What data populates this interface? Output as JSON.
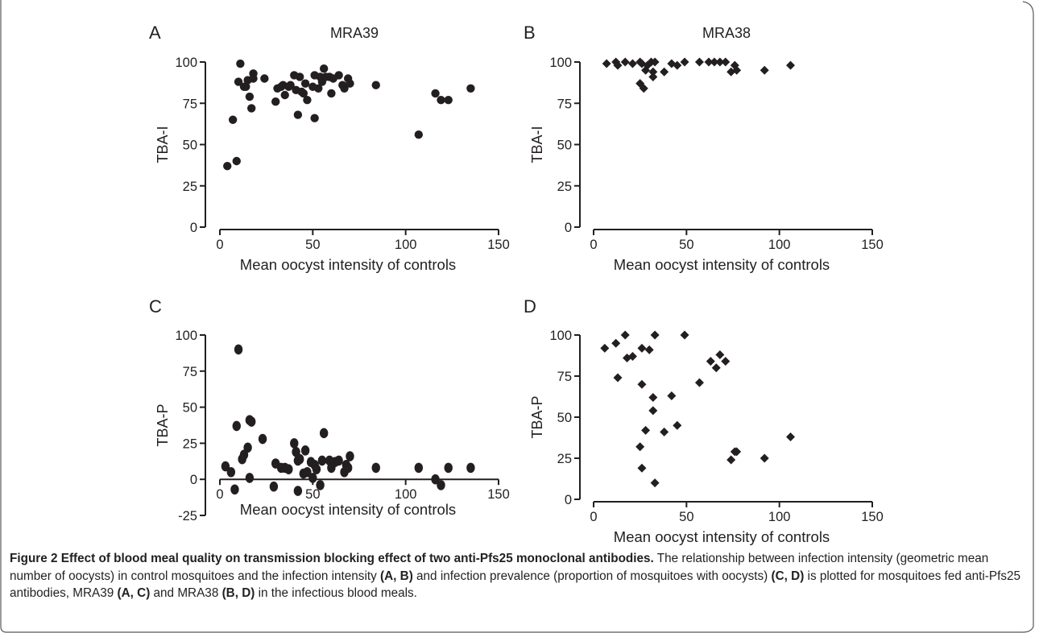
{
  "chart_data": [
    {
      "panel": "A",
      "type": "scatter",
      "title": "MRA39",
      "xlabel": "Mean oocyst intensity of controls",
      "ylabel": "TBA-I",
      "xlim": [
        0,
        150
      ],
      "ylim": [
        0,
        100
      ],
      "xticks": [
        0,
        50,
        100,
        150
      ],
      "yticks": [
        0,
        25,
        50,
        75,
        100
      ],
      "marker": "circle",
      "points": [
        [
          4,
          37
        ],
        [
          7,
          65
        ],
        [
          9,
          40
        ],
        [
          10,
          88
        ],
        [
          11,
          99
        ],
        [
          13,
          85
        ],
        [
          14,
          85
        ],
        [
          15,
          89
        ],
        [
          16,
          79
        ],
        [
          17,
          72
        ],
        [
          18,
          90
        ],
        [
          18,
          93
        ],
        [
          24,
          90
        ],
        [
          30,
          76
        ],
        [
          31,
          84
        ],
        [
          33,
          85
        ],
        [
          34,
          86
        ],
        [
          35,
          80
        ],
        [
          37,
          85
        ],
        [
          38,
          86
        ],
        [
          40,
          92
        ],
        [
          41,
          83
        ],
        [
          42,
          68
        ],
        [
          43,
          91
        ],
        [
          44,
          82
        ],
        [
          45,
          81
        ],
        [
          46,
          87
        ],
        [
          47,
          77
        ],
        [
          50,
          85
        ],
        [
          51,
          92
        ],
        [
          51,
          66
        ],
        [
          53,
          84
        ],
        [
          54,
          91
        ],
        [
          55,
          88
        ],
        [
          56,
          96
        ],
        [
          57,
          91
        ],
        [
          59,
          91
        ],
        [
          60,
          81
        ],
        [
          61,
          90
        ],
        [
          64,
          92
        ],
        [
          66,
          86
        ],
        [
          67,
          84
        ],
        [
          69,
          90
        ],
        [
          70,
          87
        ],
        [
          84,
          86
        ],
        [
          107,
          56
        ],
        [
          116,
          81
        ],
        [
          119,
          77
        ],
        [
          123,
          77
        ],
        [
          135,
          84
        ]
      ]
    },
    {
      "panel": "B",
      "type": "scatter",
      "title": "MRA38",
      "xlabel": "Mean oocyst intensity of controls",
      "ylabel": "TBA-I",
      "xlim": [
        0,
        150
      ],
      "ylim": [
        0,
        100
      ],
      "xticks": [
        0,
        50,
        100,
        150
      ],
      "yticks": [
        0,
        25,
        50,
        75,
        100
      ],
      "marker": "diamond",
      "points": [
        [
          7,
          99
        ],
        [
          12,
          100
        ],
        [
          13,
          98
        ],
        [
          17,
          100
        ],
        [
          21,
          99
        ],
        [
          25,
          100
        ],
        [
          25,
          87
        ],
        [
          26,
          99
        ],
        [
          27,
          84
        ],
        [
          28,
          95
        ],
        [
          29,
          98
        ],
        [
          31,
          100
        ],
        [
          32,
          94
        ],
        [
          32,
          91
        ],
        [
          33,
          100
        ],
        [
          38,
          94
        ],
        [
          42,
          99
        ],
        [
          45,
          98
        ],
        [
          49,
          100
        ],
        [
          57,
          100
        ],
        [
          62,
          100
        ],
        [
          65,
          100
        ],
        [
          68,
          100
        ],
        [
          71,
          100
        ],
        [
          74,
          94
        ],
        [
          76,
          98
        ],
        [
          77,
          95
        ],
        [
          92,
          95
        ],
        [
          106,
          98
        ]
      ]
    },
    {
      "panel": "C",
      "type": "scatter",
      "title": "",
      "xlabel": "Mean oocyst intensity of controls",
      "ylabel": "TBA-P",
      "xlim": [
        0,
        150
      ],
      "ylim": [
        -25,
        100
      ],
      "xticks": [
        0,
        50,
        100,
        150
      ],
      "yticks": [
        -25,
        0,
        25,
        50,
        75,
        100
      ],
      "marker": "ellipse",
      "points": [
        [
          3,
          9
        ],
        [
          6,
          5
        ],
        [
          8,
          -7
        ],
        [
          9,
          37
        ],
        [
          10,
          90
        ],
        [
          12,
          14
        ],
        [
          13,
          17
        ],
        [
          15,
          22
        ],
        [
          16,
          1
        ],
        [
          16,
          41
        ],
        [
          17,
          40
        ],
        [
          23,
          28
        ],
        [
          29,
          -5
        ],
        [
          30,
          11
        ],
        [
          33,
          8
        ],
        [
          35,
          8
        ],
        [
          37,
          7
        ],
        [
          40,
          25
        ],
        [
          41,
          19
        ],
        [
          42,
          13
        ],
        [
          42,
          -8
        ],
        [
          43,
          14
        ],
        [
          45,
          4
        ],
        [
          46,
          20
        ],
        [
          47,
          5
        ],
        [
          49,
          12
        ],
        [
          50,
          1
        ],
        [
          51,
          10
        ],
        [
          52,
          7
        ],
        [
          54,
          -4
        ],
        [
          55,
          13
        ],
        [
          56,
          32
        ],
        [
          59,
          13
        ],
        [
          60,
          8
        ],
        [
          62,
          12
        ],
        [
          64,
          13
        ],
        [
          67,
          5
        ],
        [
          68,
          10
        ],
        [
          69,
          8
        ],
        [
          70,
          16
        ],
        [
          84,
          8
        ],
        [
          107,
          8
        ],
        [
          116,
          0
        ],
        [
          119,
          -4
        ],
        [
          123,
          8
        ],
        [
          135,
          8
        ]
      ]
    },
    {
      "panel": "D",
      "type": "scatter",
      "title": "",
      "xlabel": "Mean oocyst intensity of controls",
      "ylabel": "TBA-P",
      "xlim": [
        0,
        150
      ],
      "ylim": [
        0,
        100
      ],
      "xticks": [
        0,
        50,
        100,
        150
      ],
      "yticks": [
        0,
        25,
        50,
        75,
        100
      ],
      "marker": "diamond",
      "points": [
        [
          6,
          92
        ],
        [
          12,
          95
        ],
        [
          13,
          74
        ],
        [
          17,
          100
        ],
        [
          18,
          86
        ],
        [
          21,
          87
        ],
        [
          25,
          32
        ],
        [
          26,
          92
        ],
        [
          26,
          70
        ],
        [
          26,
          19
        ],
        [
          28,
          42
        ],
        [
          30,
          91
        ],
        [
          32,
          54
        ],
        [
          32,
          62
        ],
        [
          33,
          100
        ],
        [
          33,
          10
        ],
        [
          38,
          41
        ],
        [
          42,
          63
        ],
        [
          45,
          45
        ],
        [
          49,
          100
        ],
        [
          57,
          71
        ],
        [
          63,
          84
        ],
        [
          66,
          80
        ],
        [
          68,
          88
        ],
        [
          71,
          84
        ],
        [
          74,
          24
        ],
        [
          76,
          29
        ],
        [
          77,
          29
        ],
        [
          92,
          25
        ],
        [
          106,
          38
        ]
      ]
    }
  ],
  "panel_labels": [
    "A",
    "B",
    "C",
    "D"
  ],
  "caption": {
    "lead": "Figure 2 Effect of blood meal quality on transmission blocking effect of two anti-Pfs25 monoclonal antibodies.",
    "seg1": " The relationship between infection intensity (geometric mean number of oocysts) in control mosquitoes and the infection intensity ",
    "ref1": "(A, B)",
    "seg2": " and infection prevalence (proportion of mosquitoes with oocysts) ",
    "ref2": "(C, D)",
    "seg3": " is plotted for mosquitoes fed anti-Pfs25 antibodies, MRA39 ",
    "ref3": "(A, C)",
    "seg4": " and MRA38 ",
    "ref4": "(B, D)",
    "seg5": " in the infectious blood meals."
  }
}
